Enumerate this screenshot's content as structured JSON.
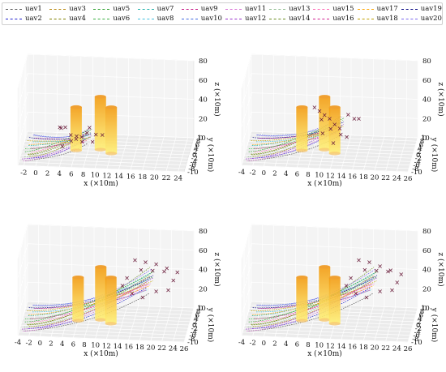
{
  "legend": {
    "items": [
      {
        "label": "uav1",
        "color": "#555555"
      },
      {
        "label": "uav2",
        "color": "#1f1fd0"
      },
      {
        "label": "uav3",
        "color": "#b8860b"
      },
      {
        "label": "uav4",
        "color": "#808000"
      },
      {
        "label": "uav5",
        "color": "#2ca02c"
      },
      {
        "label": "uav6",
        "color": "#3cb043"
      },
      {
        "label": "uav7",
        "color": "#20b2aa"
      },
      {
        "label": "uav8",
        "color": "#40c0e0"
      },
      {
        "label": "uav9",
        "color": "#c71585"
      },
      {
        "label": "uav10",
        "color": "#4169e1"
      },
      {
        "label": "uav11",
        "color": "#da70d6"
      },
      {
        "label": "uav12",
        "color": "#9932cc"
      },
      {
        "label": "uav13",
        "color": "#8fbc8f"
      },
      {
        "label": "uav14",
        "color": "#6b8e23"
      },
      {
        "label": "uav15",
        "color": "#ff69b4"
      },
      {
        "label": "uav16",
        "color": "#d02090"
      },
      {
        "label": "uav17",
        "color": "#ffa500"
      },
      {
        "label": "uav18",
        "color": "#c0a000"
      },
      {
        "label": "uav19",
        "color": "#000080"
      },
      {
        "label": "uav20",
        "color": "#7b68ee"
      }
    ]
  },
  "chart_data": [
    {
      "type": "line",
      "panel": "top-left",
      "xlabel": "x (×10m)",
      "ylabel": "y (×10m)",
      "zlabel": "z (×10m)",
      "x_ticks": [
        "-2",
        "0",
        "2",
        "4",
        "6",
        "8",
        "10",
        "12",
        "14",
        "16",
        "18",
        "20",
        "22",
        "24"
      ],
      "y_ticks": [
        "10",
        "8",
        "6",
        "4",
        "2",
        "0",
        "-2",
        "-4",
        "-6",
        "-8",
        "-10"
      ],
      "z_ticks": [
        "80",
        "60",
        "40",
        "20",
        "0"
      ],
      "xlim": [
        -3,
        25
      ],
      "ylim": [
        -10,
        10
      ],
      "zlim": [
        0,
        80
      ],
      "obstacles": [
        {
          "x": 6,
          "y": 0,
          "z_top": 45,
          "color": "#f39c12"
        },
        {
          "x": 10,
          "y": 1,
          "z_top": 55,
          "color": "#f39c12"
        },
        {
          "x": 12,
          "y": -1,
          "z_top": 48,
          "color": "#f39c12"
        }
      ],
      "markers_x": [
        3,
        4,
        5,
        6,
        7,
        8,
        9,
        10,
        3,
        5,
        7,
        9,
        4,
        6,
        8
      ],
      "markers_y": [
        3,
        2,
        1,
        0,
        -1,
        -2,
        4,
        5,
        6,
        2,
        0,
        -3,
        -4,
        1,
        3
      ],
      "markers_z": [
        18,
        20,
        14,
        12,
        16,
        22,
        10,
        8,
        12,
        6,
        9,
        15,
        11,
        13,
        19
      ],
      "series_count": 20,
      "grid": true
    },
    {
      "type": "line",
      "panel": "top-right",
      "xlabel": "x (×10m)",
      "ylabel": "y (×10m)",
      "zlabel": "z (×10m)",
      "x_ticks": [
        "-4",
        "-2",
        "0",
        "2",
        "4",
        "6",
        "8",
        "10",
        "12",
        "14",
        "16",
        "18",
        "20",
        "22",
        "24",
        "26"
      ],
      "y_ticks": [
        "10",
        "8",
        "6",
        "4",
        "2",
        "0",
        "-2",
        "-4",
        "-6",
        "-8",
        "-10"
      ],
      "z_ticks": [
        "80",
        "60",
        "40",
        "20",
        "0"
      ],
      "xlim": [
        -4,
        26
      ],
      "ylim": [
        -10,
        10
      ],
      "zlim": [
        0,
        80
      ],
      "obstacles": [
        {
          "x": 6,
          "y": 0,
          "z_top": 45,
          "color": "#f39c12"
        },
        {
          "x": 10,
          "y": 1,
          "z_top": 55,
          "color": "#f39c12"
        },
        {
          "x": 12,
          "y": -1,
          "z_top": 48,
          "color": "#f39c12"
        }
      ],
      "markers_x": [
        8,
        9,
        10,
        11,
        12,
        13,
        14,
        15,
        9,
        11,
        13,
        10,
        12,
        14,
        16
      ],
      "markers_y": [
        3,
        2,
        1,
        0,
        -1,
        -2,
        4,
        5,
        6,
        2,
        0,
        -3,
        -4,
        1,
        3
      ],
      "markers_z": [
        40,
        38,
        36,
        34,
        30,
        28,
        32,
        26,
        22,
        20,
        18,
        24,
        16,
        14,
        30
      ],
      "series_count": 20,
      "grid": true
    },
    {
      "type": "line",
      "panel": "bottom-left",
      "xlabel": "x (×10m)",
      "ylabel": "y (×10m)",
      "zlabel": "z (×10m)",
      "x_ticks": [
        "-4",
        "-2",
        "0",
        "2",
        "4",
        "6",
        "8",
        "10",
        "12",
        "14",
        "16",
        "18",
        "20",
        "22",
        "24",
        "26"
      ],
      "y_ticks": [
        "10",
        "8",
        "6",
        "4",
        "2",
        "0",
        "-2",
        "-4",
        "-6",
        "-8",
        "-10"
      ],
      "z_ticks": [
        "80",
        "60",
        "40",
        "20",
        "0"
      ],
      "xlim": [
        -4,
        26
      ],
      "ylim": [
        -10,
        10
      ],
      "zlim": [
        0,
        80
      ],
      "obstacles": [
        {
          "x": 6,
          "y": 0,
          "z_top": 45,
          "color": "#f39c12"
        },
        {
          "x": 10,
          "y": 1,
          "z_top": 55,
          "color": "#f39c12"
        },
        {
          "x": 12,
          "y": -1,
          "z_top": 48,
          "color": "#f39c12"
        }
      ],
      "markers_x": [
        16,
        18,
        20,
        22,
        24,
        15,
        17,
        19,
        21,
        23,
        14,
        16,
        18,
        20,
        22
      ],
      "markers_y": [
        3,
        2,
        1,
        0,
        -1,
        -2,
        4,
        5,
        6,
        2,
        0,
        -3,
        -4,
        1,
        3
      ],
      "markers_z": [
        60,
        60,
        60,
        58,
        56,
        50,
        48,
        46,
        44,
        42,
        38,
        36,
        34,
        32,
        30
      ],
      "series_count": 20,
      "grid": true
    },
    {
      "type": "line",
      "panel": "bottom-right",
      "xlabel": "x (×10m)",
      "ylabel": "y (×10m)",
      "zlabel": "z (×10m)",
      "x_ticks": [
        "-4",
        "-2",
        "0",
        "2",
        "4",
        "6",
        "8",
        "10",
        "12",
        "14",
        "16",
        "18",
        "20",
        "22",
        "24",
        "26"
      ],
      "y_ticks": [
        "10",
        "8",
        "6",
        "4",
        "2",
        "0",
        "-2",
        "-4",
        "-6",
        "-8",
        "-10"
      ],
      "z_ticks": [
        "80",
        "60",
        "40",
        "20",
        "0"
      ],
      "xlim": [
        -4,
        26
      ],
      "ylim": [
        -10,
        10
      ],
      "zlim": [
        0,
        80
      ],
      "obstacles": [
        {
          "x": 6,
          "y": 0,
          "z_top": 45,
          "color": "#f39c12"
        },
        {
          "x": 10,
          "y": 1,
          "z_top": 55,
          "color": "#f39c12"
        },
        {
          "x": 12,
          "y": -1,
          "z_top": 48,
          "color": "#f39c12"
        }
      ],
      "markers_x": [
        16,
        18,
        20,
        22,
        24,
        15,
        17,
        19,
        21,
        23,
        14,
        16,
        18,
        20,
        22
      ],
      "markers_y": [
        3,
        2,
        1,
        0,
        -1,
        -2,
        4,
        5,
        6,
        2,
        0,
        -3,
        -4,
        1,
        3
      ],
      "markers_z": [
        60,
        60,
        58,
        56,
        54,
        50,
        48,
        46,
        44,
        40,
        38,
        36,
        34,
        32,
        30
      ],
      "series_count": 20,
      "grid": true
    }
  ]
}
